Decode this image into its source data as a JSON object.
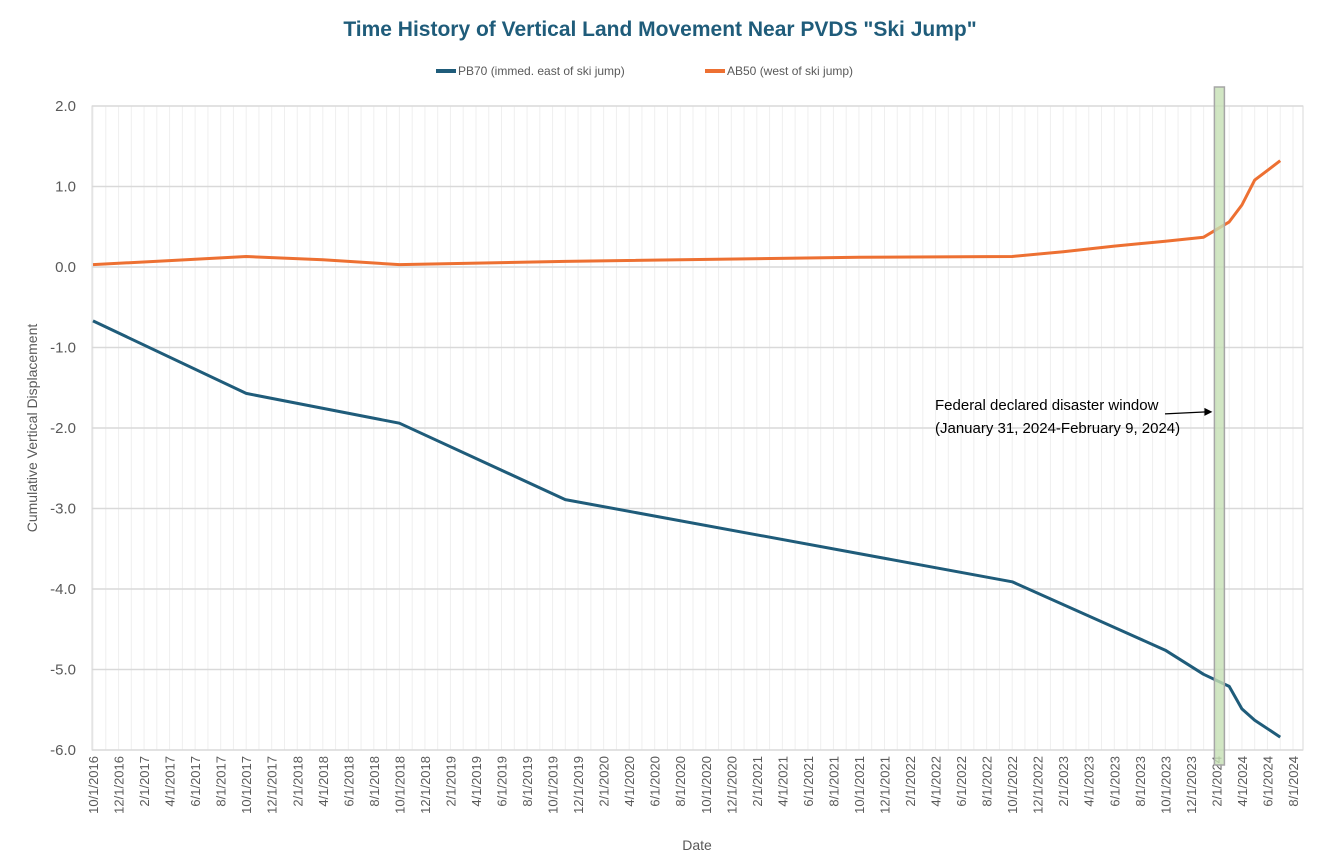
{
  "chart_data": {
    "type": "line",
    "title": "Time History of Vertical Land Movement Near  PVDS \"Ski Jump\"",
    "xlabel": "Date",
    "ylabel": "Cumulative Vertical Displacement",
    "ylim": [
      -6.0,
      2.0
    ],
    "yticks": [
      "2.0",
      "1.0",
      "0.0",
      "-1.0",
      "-2.0",
      "-3.0",
      "-4.0",
      "-5.0",
      "-6.0"
    ],
    "xrange": [
      "10/1/2016",
      "9/1/2024"
    ],
    "xticks": [
      "10/1/2016",
      "12/1/2016",
      "2/1/2017",
      "4/1/2017",
      "6/1/2017",
      "8/1/2017",
      "10/1/2017",
      "12/1/2017",
      "2/1/2018",
      "4/1/2018",
      "6/1/2018",
      "8/1/2018",
      "10/1/2018",
      "12/1/2018",
      "2/1/2019",
      "4/1/2019",
      "6/1/2019",
      "8/1/2019",
      "10/1/2019",
      "12/1/2019",
      "2/1/2020",
      "4/1/2020",
      "6/1/2020",
      "8/1/2020",
      "10/1/2020",
      "12/1/2020",
      "2/1/2021",
      "4/1/2021",
      "6/1/2021",
      "8/1/2021",
      "10/1/2021",
      "12/1/2021",
      "2/1/2022",
      "4/1/2022",
      "6/1/2022",
      "8/1/2022",
      "10/1/2022",
      "12/1/2022",
      "2/1/2023",
      "4/1/2023",
      "6/1/2023",
      "8/1/2023",
      "10/1/2023",
      "12/1/2023",
      "2/1/2024",
      "4/1/2024",
      "6/1/2024",
      "8/1/2024"
    ],
    "grid": "monthly vertical, major horizontal",
    "legend_position": "top",
    "series": [
      {
        "name": "PB70 (immed. east of ski jump)",
        "color": "#1f5c7a",
        "points": [
          [
            "10/1/2016",
            -0.67
          ],
          [
            "10/1/2017",
            -1.57
          ],
          [
            "10/1/2018",
            -1.94
          ],
          [
            "11/1/2019",
            -2.89
          ],
          [
            "10/1/2022",
            -3.91
          ],
          [
            "10/1/2023",
            -4.76
          ],
          [
            "1/1/2024",
            -5.06
          ],
          [
            "3/1/2024",
            -5.21
          ],
          [
            "4/1/2024",
            -5.49
          ],
          [
            "5/1/2024",
            -5.63
          ],
          [
            "7/1/2024",
            -5.84
          ]
        ]
      },
      {
        "name": "AB50 (west of ski jump)",
        "color": "#ed7032",
        "points": [
          [
            "10/1/2016",
            0.03
          ],
          [
            "4/1/2017",
            0.08
          ],
          [
            "10/1/2017",
            0.13
          ],
          [
            "4/1/2018",
            0.09
          ],
          [
            "10/1/2018",
            0.03
          ],
          [
            "11/1/2019",
            0.07
          ],
          [
            "10/1/2021",
            0.12
          ],
          [
            "10/1/2022",
            0.13
          ],
          [
            "2/1/2023",
            0.19
          ],
          [
            "6/1/2023",
            0.26
          ],
          [
            "10/1/2023",
            0.32
          ],
          [
            "1/1/2024",
            0.37
          ],
          [
            "3/1/2024",
            0.56
          ],
          [
            "4/1/2024",
            0.77
          ],
          [
            "5/1/2024",
            1.08
          ],
          [
            "7/1/2024",
            1.32
          ]
        ]
      }
    ],
    "highlight": {
      "start": "1/31/2024",
      "end": "2/9/2024",
      "color": "#c6e0b4"
    },
    "annotation": {
      "line1": "Federal declared disaster window",
      "line2": "(January 31, 2024-February 9, 2024)",
      "arrow_to": "2/1/2024",
      "arrow_y": -1.7
    }
  }
}
